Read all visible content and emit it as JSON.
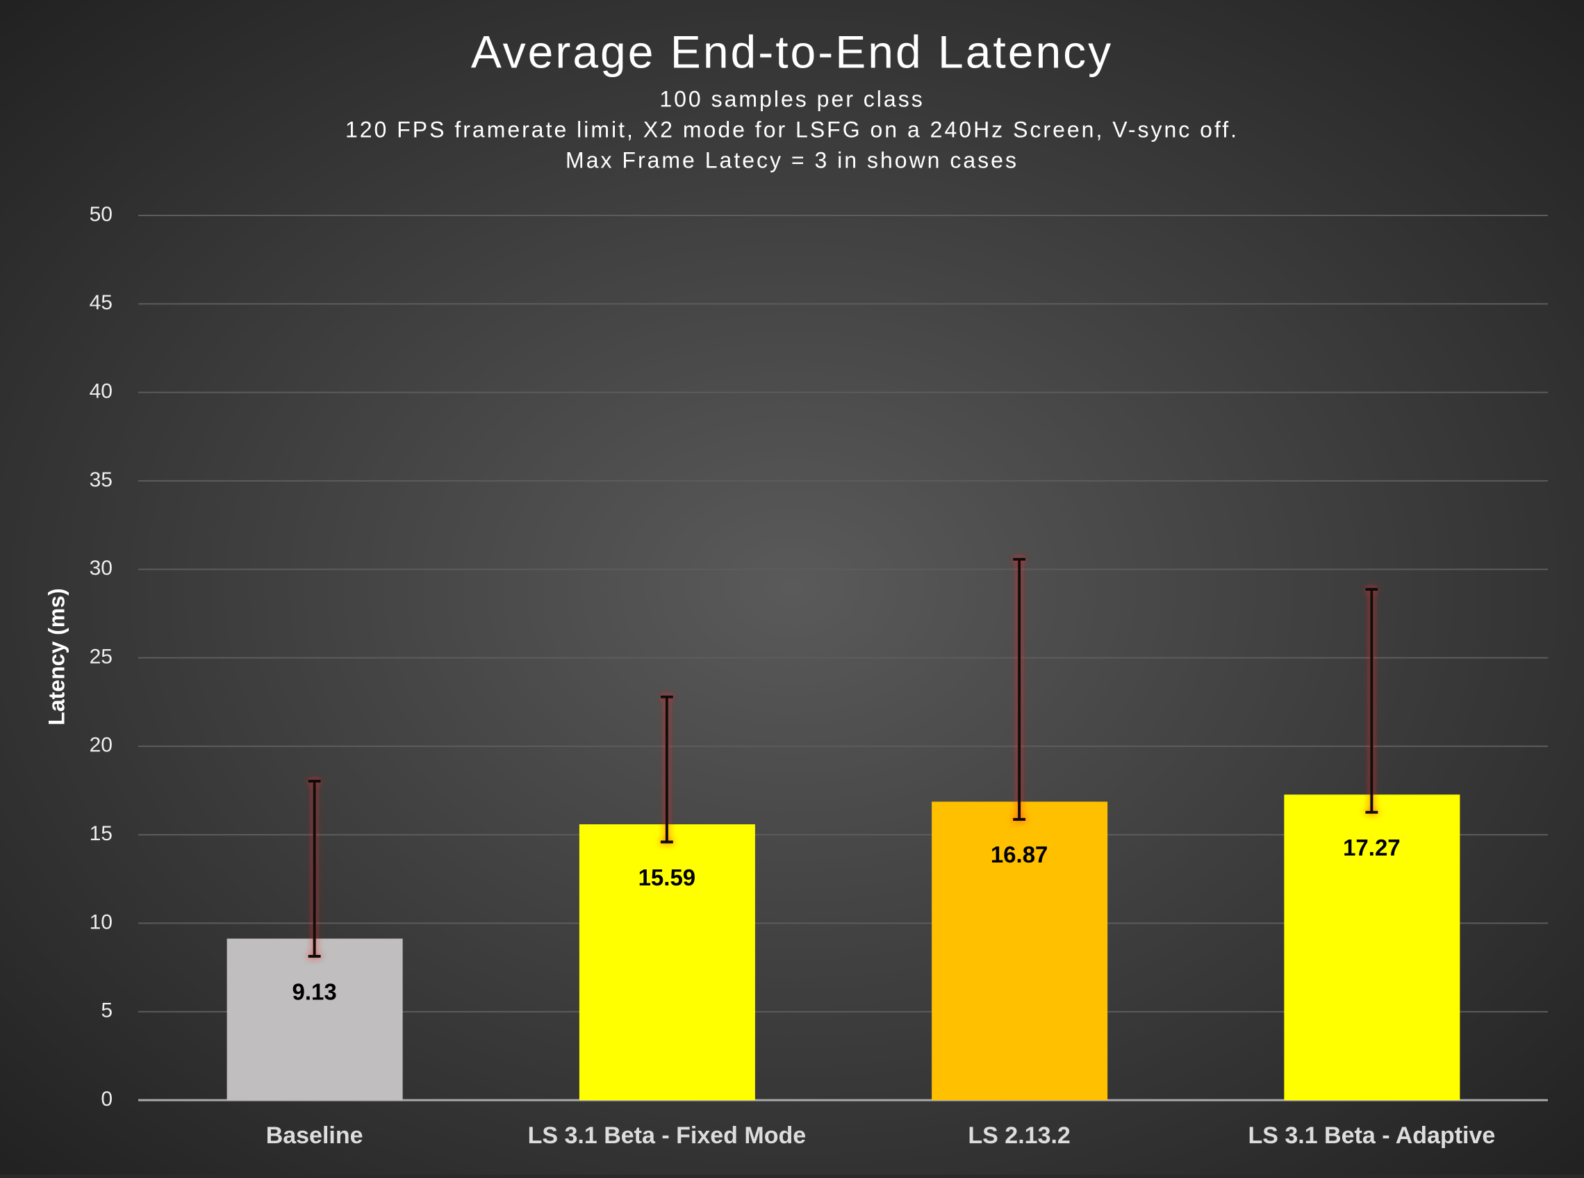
{
  "chart_data": {
    "type": "bar",
    "title": "Average End-to-End Latency",
    "subtitle": [
      "100 samples per class",
      "120 FPS framerate limit, X2 mode for LSFG on a 240Hz Screen, V-sync off.",
      "Max Frame Latecy = 3 in shown cases"
    ],
    "y_label": "Latency (ms)",
    "categories": [
      "Baseline",
      "LS 3.1 Beta - Fixed Mode",
      "LS 2.13.2",
      "LS 3.1 Beta - Adaptive"
    ],
    "values": [
      9.13,
      15.59,
      16.87,
      17.27
    ],
    "colors": [
      "#c0bebe",
      "#ffff00",
      "#ffc000",
      "#ffff00"
    ],
    "error_minus": [
      1.0,
      1.0,
      1.0,
      1.0
    ],
    "error_plus": [
      8.9,
      7.2,
      13.7,
      11.6
    ],
    "ylim": [
      0,
      50
    ],
    "yticks": [
      0,
      5,
      10,
      15,
      20,
      25,
      30,
      35,
      40,
      45,
      50
    ],
    "grid": true
  }
}
